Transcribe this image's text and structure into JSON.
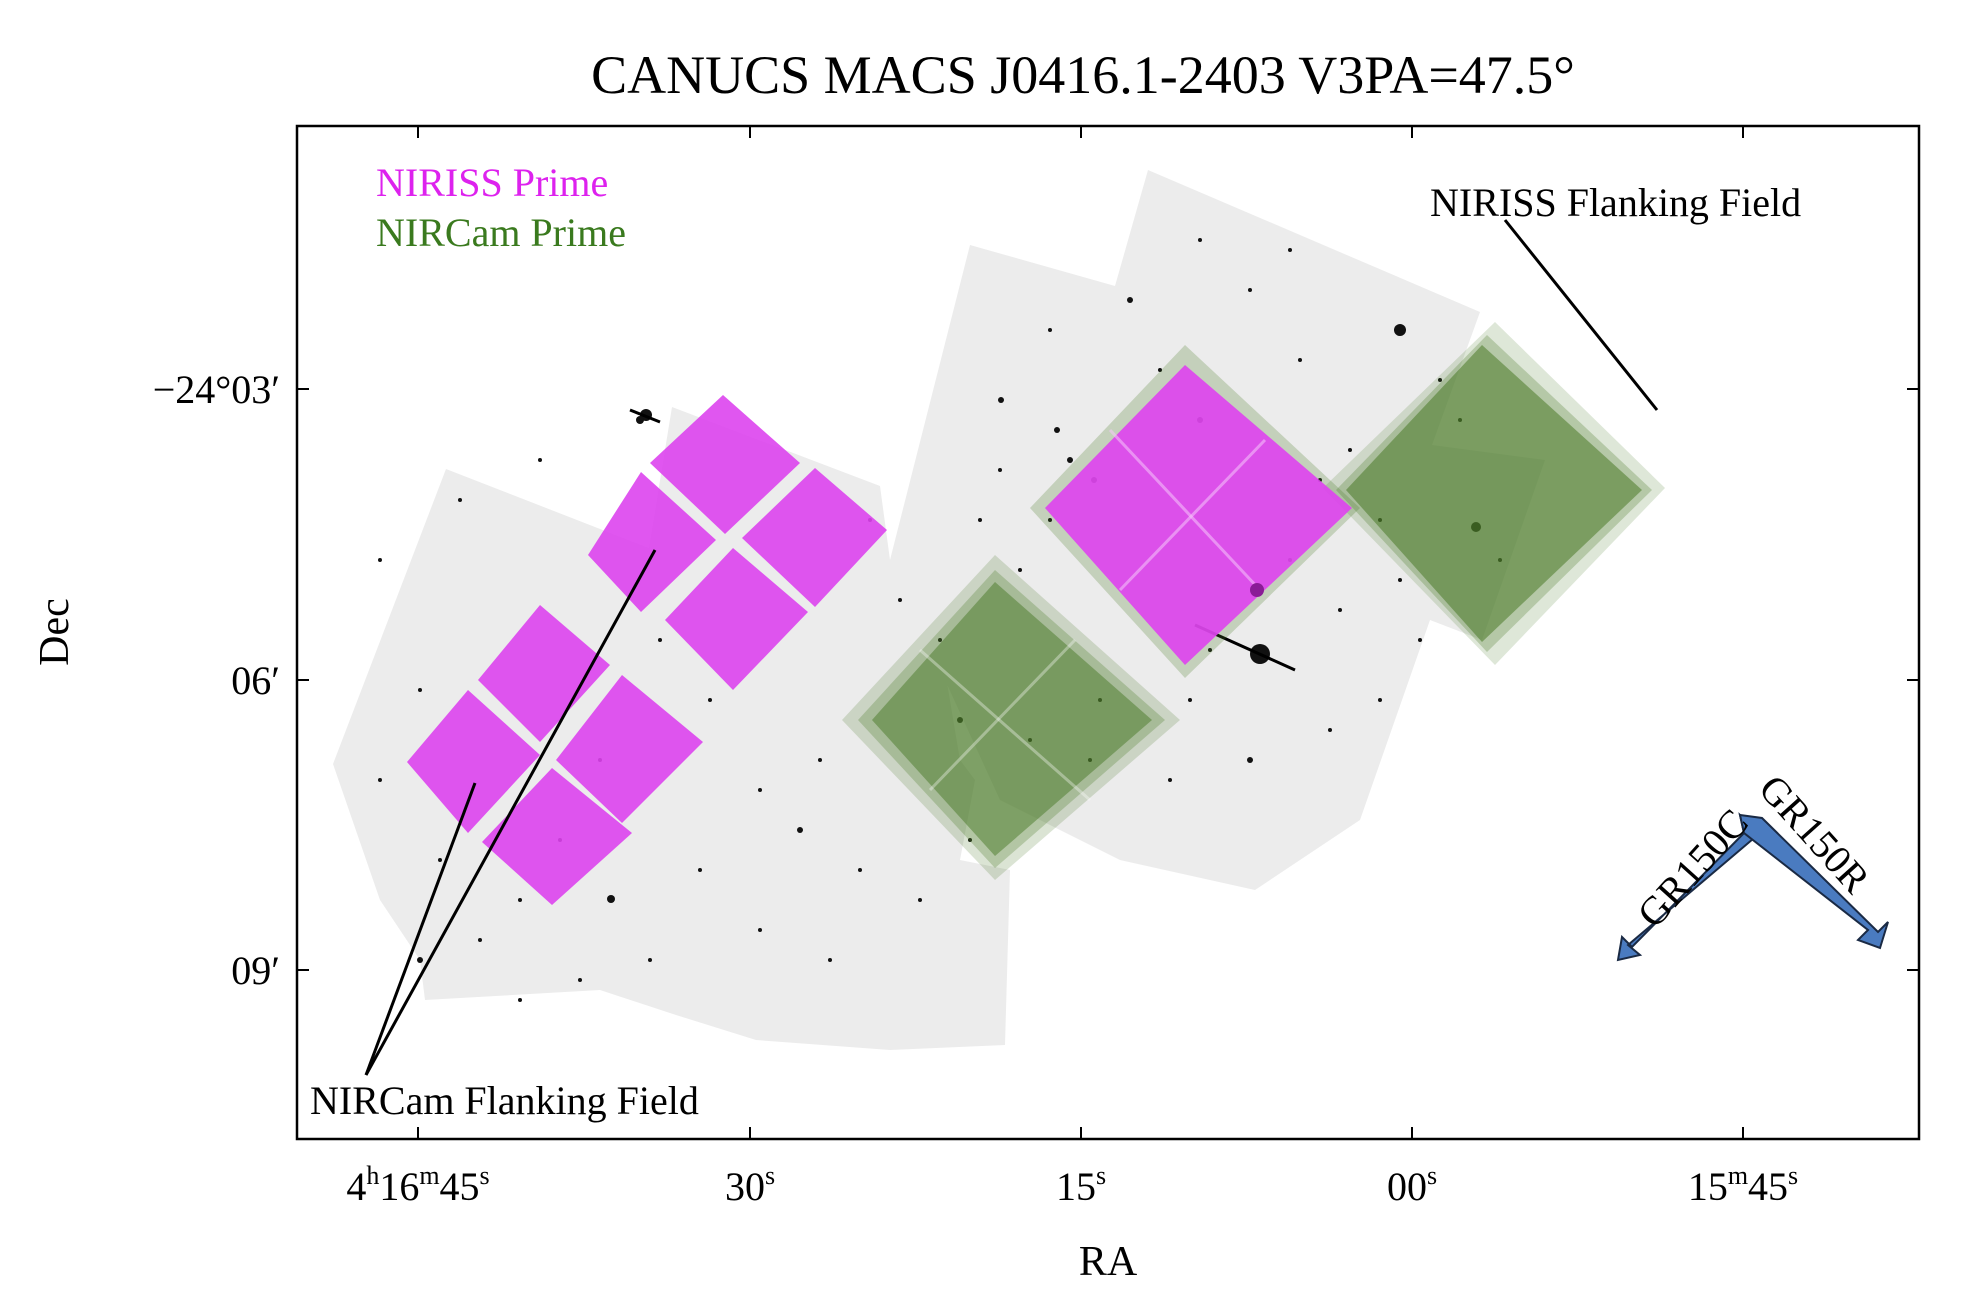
{
  "title": "CANUCS MACS J0416.1-2403 V3PA=47.5°",
  "xlabel": "RA",
  "ylabel": "Dec",
  "x_ticks": [
    {
      "main": "4",
      "s1": "h",
      "mid": "16",
      "s2": "m",
      "tail": "45",
      "s3": "s"
    },
    {
      "main": "30",
      "s3": "s"
    },
    {
      "main": "15",
      "s3": "s"
    },
    {
      "main": "00",
      "s3": "s"
    },
    {
      "main": "15",
      "s2": "m",
      "tail": "45",
      "s3": "s"
    }
  ],
  "y_ticks": [
    "−24°03′",
    "06′",
    "09′"
  ],
  "legend": {
    "niriss_prime": "NIRISS Prime",
    "nircam_prime": "NIRCam Prime"
  },
  "annotations": {
    "niriss_flanking": "NIRISS Flanking Field",
    "nircam_flanking": "NIRCam Flanking Field",
    "gr150c": "GR150C",
    "gr150r": "GR150R"
  },
  "colors": {
    "niriss": "#dd44ee",
    "nircam": "#4a7a28",
    "nircam_label": "#3a7a1e",
    "niriss_label": "#dd22ee",
    "arrow": "#4a7bc0",
    "background_image": "#ececec"
  }
}
